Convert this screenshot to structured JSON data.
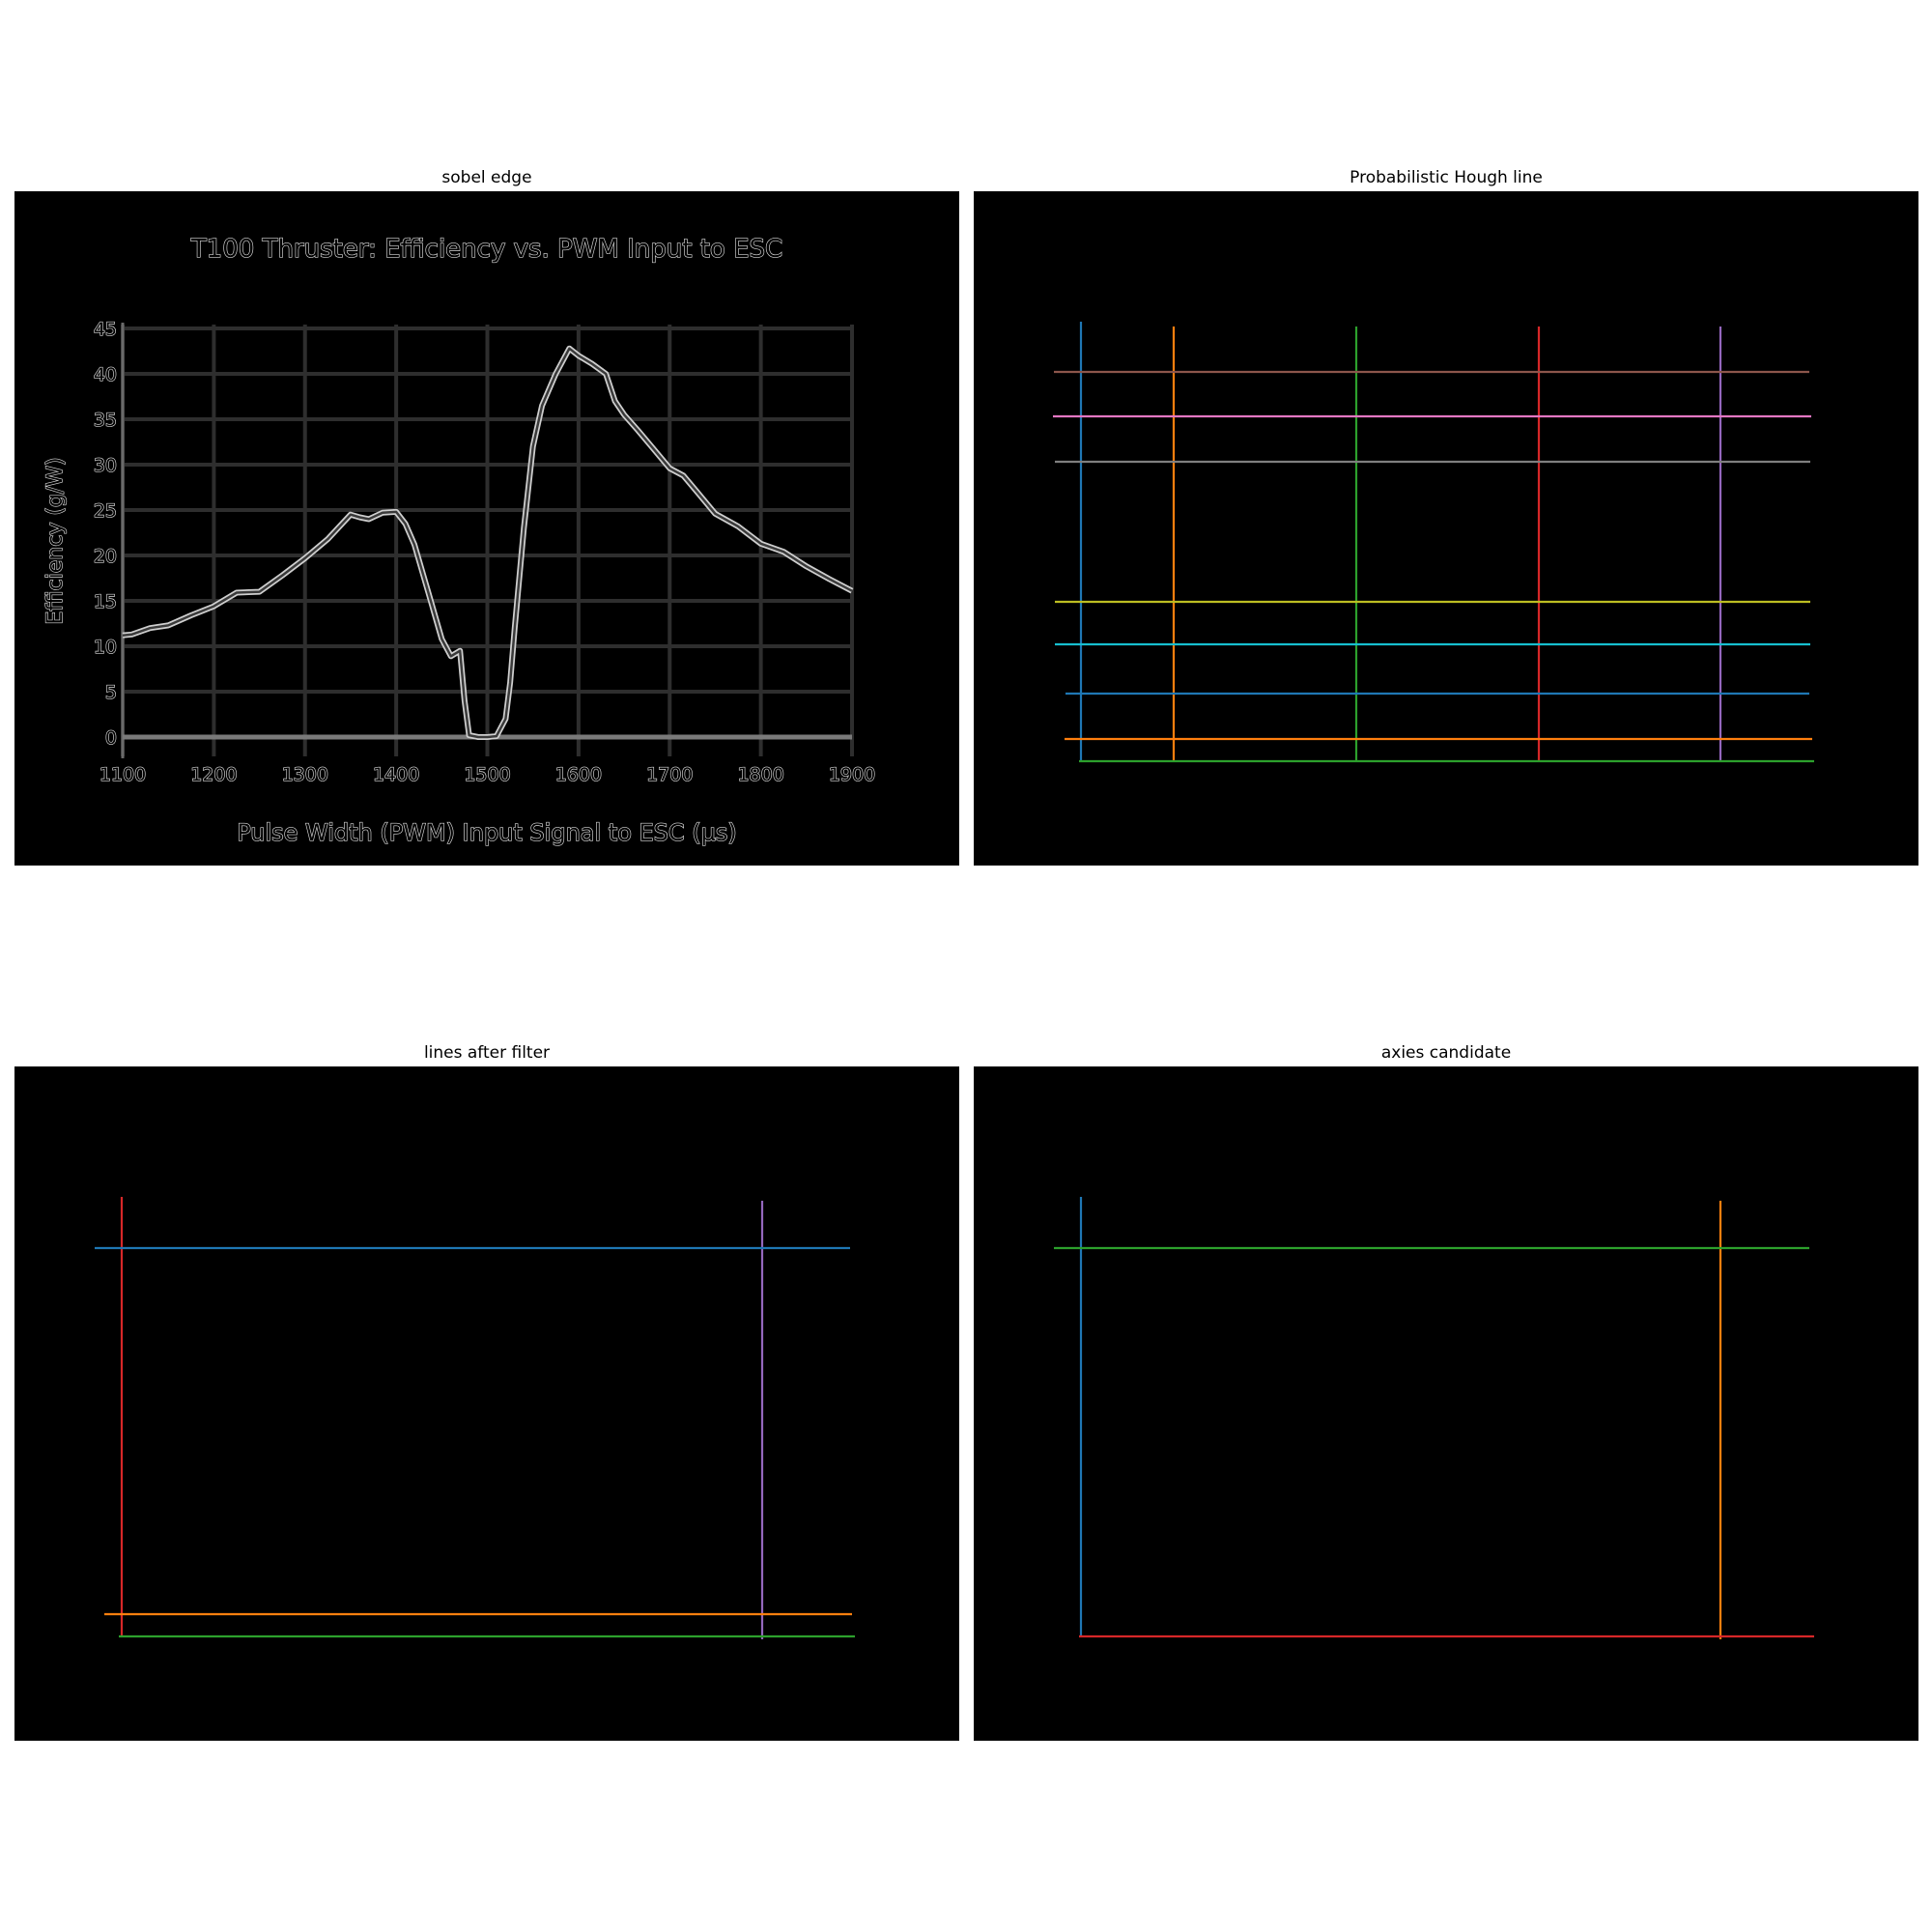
{
  "panels": {
    "sobel": {
      "title": "sobel edge"
    },
    "hough": {
      "title": "Probabilistic Hough line"
    },
    "filter": {
      "title": "lines after filter"
    },
    "axes": {
      "title": "axies candidate"
    }
  },
  "colors": {
    "background": "#000000",
    "edge": "#cfcfcf",
    "grid": "#2e2e2e",
    "blue": "#1f77b4",
    "orange": "#ff7f0e",
    "green": "#2ca02c",
    "red": "#d62728",
    "purple": "#9467bd",
    "brown": "#8c564b",
    "pink": "#e377c2",
    "gray": "#7f7f7f",
    "olive": "#bcbd22",
    "cyan": "#17becf"
  },
  "chart_data": [
    {
      "type": "line",
      "panel": "sobel edge",
      "title": "T100 Thruster: Efficiency vs. PWM Input to ESC",
      "xlabel": "Pulse Width (PWM) Input Signal to ESC (µs)",
      "ylabel": "Efficiency (g/W)",
      "xlim": [
        1100,
        1900
      ],
      "ylim": [
        0,
        45
      ],
      "xticks": [
        "1100",
        "1200",
        "1300",
        "1400",
        "1500",
        "1600",
        "1700",
        "1800",
        "1900"
      ],
      "yticks": [
        "0",
        "5",
        "10",
        "15",
        "20",
        "25",
        "30",
        "35",
        "40",
        "45"
      ],
      "grid": true,
      "series": [
        {
          "x": [
            1100,
            1110,
            1130,
            1150,
            1175,
            1200,
            1225,
            1250,
            1275,
            1300,
            1325,
            1350,
            1360,
            1370,
            1385,
            1400,
            1410,
            1420,
            1435,
            1450,
            1460,
            1470,
            1475,
            1480,
            1490,
            1500,
            1510,
            1520,
            1525,
            1530,
            1540,
            1550,
            1560,
            1575,
            1590,
            1600,
            1615,
            1630,
            1640,
            1650,
            1665,
            1680,
            1700,
            1715,
            1730,
            1750,
            1775,
            1800,
            1825,
            1850,
            1875,
            1900
          ],
          "y": [
            11.2,
            11.3,
            12,
            12.3,
            13.4,
            14.4,
            15.9,
            16,
            17.8,
            19.7,
            21.8,
            24.5,
            24.2,
            24,
            24.7,
            24.8,
            23.5,
            21.2,
            16,
            10.8,
            8.9,
            9.5,
            4,
            0.2,
            0,
            0,
            0.1,
            2,
            6,
            12,
            23,
            32,
            36.5,
            40,
            42.8,
            42,
            41.1,
            40,
            37,
            35.5,
            33.8,
            32,
            29.6,
            28.8,
            27,
            24.6,
            23.2,
            21.3,
            20.4,
            18.8,
            17.4,
            16.1
          ]
        }
      ]
    },
    {
      "type": "line",
      "panel": "Probabilistic Hough line",
      "segments": [
        {
          "orientation": "vertical",
          "color": "blue"
        },
        {
          "orientation": "vertical",
          "color": "orange"
        },
        {
          "orientation": "vertical",
          "color": "green"
        },
        {
          "orientation": "vertical",
          "color": "red"
        },
        {
          "orientation": "vertical",
          "color": "purple"
        },
        {
          "orientation": "horizontal",
          "color": "brown"
        },
        {
          "orientation": "horizontal",
          "color": "pink"
        },
        {
          "orientation": "horizontal",
          "color": "gray"
        },
        {
          "orientation": "horizontal",
          "color": "olive"
        },
        {
          "orientation": "horizontal",
          "color": "cyan"
        },
        {
          "orientation": "horizontal",
          "color": "blue"
        },
        {
          "orientation": "horizontal",
          "color": "orange"
        },
        {
          "orientation": "horizontal",
          "color": "green"
        }
      ]
    },
    {
      "type": "line",
      "panel": "lines after filter",
      "segments": [
        {
          "orientation": "vertical",
          "color": "red"
        },
        {
          "orientation": "vertical",
          "color": "purple"
        },
        {
          "orientation": "horizontal",
          "color": "blue"
        },
        {
          "orientation": "horizontal",
          "color": "orange"
        },
        {
          "orientation": "horizontal",
          "color": "green"
        }
      ]
    },
    {
      "type": "line",
      "panel": "axies candidate",
      "segments": [
        {
          "orientation": "vertical",
          "color": "blue"
        },
        {
          "orientation": "vertical",
          "color": "orange"
        },
        {
          "orientation": "horizontal",
          "color": "green"
        },
        {
          "orientation": "horizontal",
          "color": "red"
        }
      ]
    }
  ]
}
